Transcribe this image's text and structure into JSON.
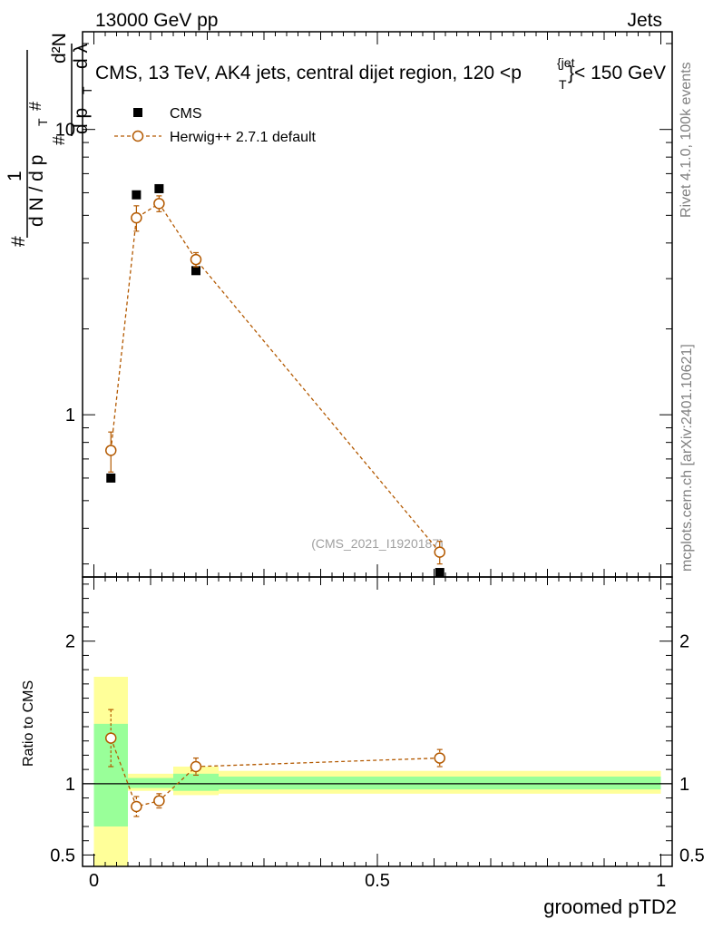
{
  "header": {
    "left": "13000 GeV pp",
    "right": "Jets",
    "plot_title": "CMS, 13 TeV, AK4 jets, central dijet region, 120 <p",
    "title_sup": "{jet",
    "title_sub": "T",
    "title_end": "}< 150 GeV"
  },
  "side_labels": {
    "rivet": "Rivet 4.1.0,  100k events",
    "mcplots": "mcplots.cern.ch [arXiv:2401.10621]"
  },
  "watermark": "(CMS_2021_I1920187)",
  "ylabel_main": {
    "hash1": "#",
    "one": "1",
    "dN": "d N / d p",
    "T1": "T",
    "hash2": "#",
    "d2N": "d²N",
    "dp": "d p",
    "T2": "T",
    "dlambda": "d λ",
    "hash3": "#"
  },
  "ylabel_ratio": "Ratio to CMS",
  "xlabel": "groomed pTD2",
  "legend": {
    "data": "CMS",
    "mc": "Herwig++ 2.7.1 default"
  },
  "colors": {
    "data": "#000000",
    "mc": "#b35900",
    "band_outer": "#ffff99",
    "band_inner": "#99ff99"
  },
  "chart_data": {
    "type": "scatter",
    "x_range": [
      -0.02,
      1.02
    ],
    "main": {
      "yscale": "log",
      "ylim": [
        0.27,
        22
      ],
      "y_tick_labels": [
        "1",
        "10"
      ],
      "series": [
        {
          "name": "CMS",
          "marker": "square",
          "x": [
            0.03,
            0.075,
            0.115,
            0.18,
            0.61
          ],
          "y": [
            0.6,
            5.9,
            6.2,
            3.2,
            0.28
          ]
        },
        {
          "name": "Herwig++ 2.7.1 default",
          "marker": "open-circle",
          "x": [
            0.03,
            0.075,
            0.115,
            0.18,
            0.61
          ],
          "y": [
            0.75,
            4.9,
            5.5,
            3.5,
            0.33
          ],
          "err": [
            0.12,
            0.5,
            0.35,
            0.2,
            0.03
          ]
        }
      ]
    },
    "ratio": {
      "ylim": [
        0.42,
        2.45
      ],
      "y_tick_labels": [
        "0.5",
        "1",
        "2"
      ],
      "x_tick_labels": [
        "0",
        "0.5",
        "1"
      ],
      "bins": [
        {
          "x0": 0.0,
          "x1": 0.06,
          "outer": [
            0.36,
            1.75
          ],
          "inner": [
            0.7,
            1.42
          ]
        },
        {
          "x0": 0.06,
          "x1": 0.14,
          "outer": [
            0.95,
            1.07
          ],
          "inner": [
            0.97,
            1.04
          ]
        },
        {
          "x0": 0.14,
          "x1": 0.22,
          "outer": [
            0.92,
            1.12
          ],
          "inner": [
            0.95,
            1.07
          ]
        },
        {
          "x0": 0.22,
          "x1": 1.0,
          "outer": [
            0.93,
            1.09
          ],
          "inner": [
            0.96,
            1.05
          ]
        }
      ],
      "series": [
        {
          "name": "Herwig++ 2.7.1 default",
          "x": [
            0.03,
            0.075,
            0.115,
            0.18,
            0.61
          ],
          "y": [
            1.32,
            0.84,
            0.88,
            1.12,
            1.18
          ],
          "err": [
            0.2,
            0.07,
            0.05,
            0.06,
            0.06
          ]
        }
      ]
    }
  }
}
